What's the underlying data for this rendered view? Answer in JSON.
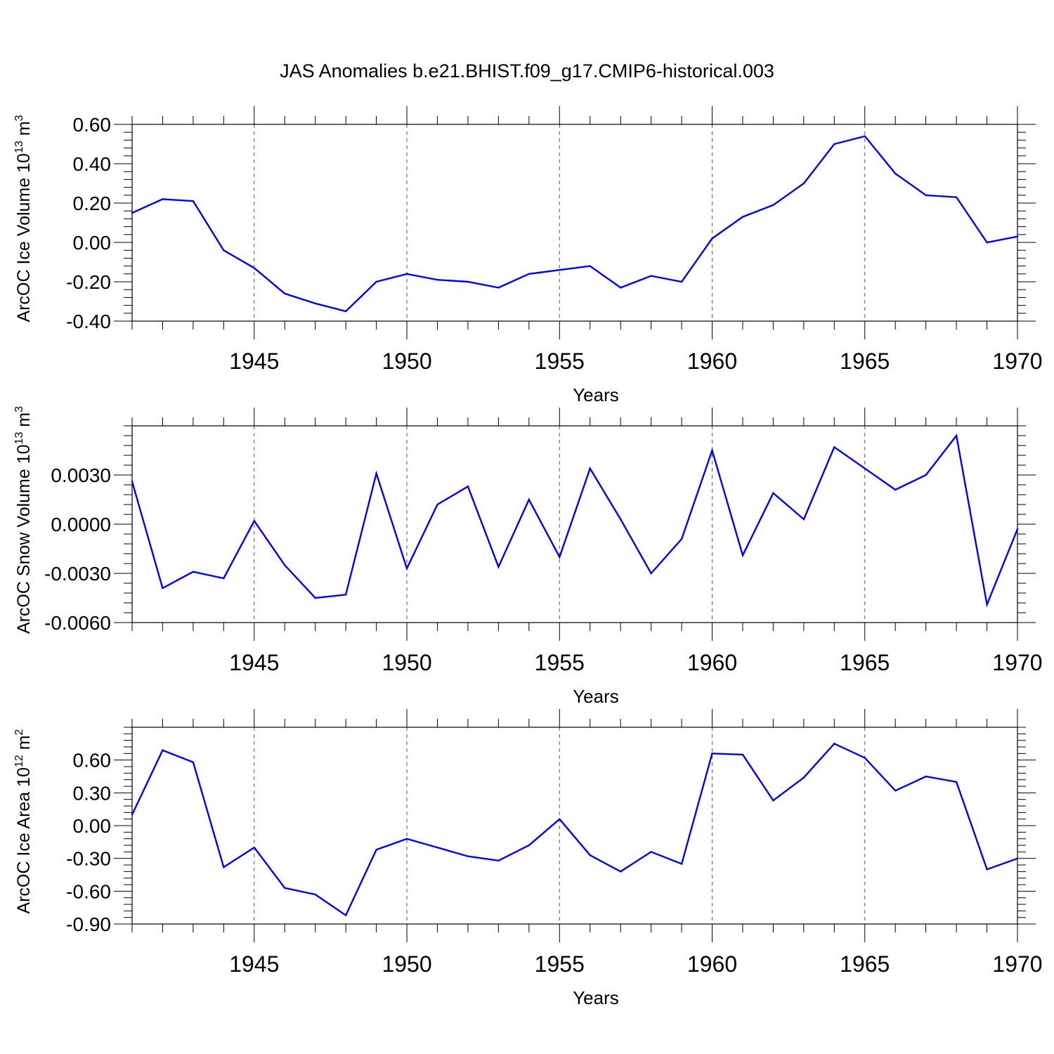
{
  "title": "JAS Anomalies b.e21.BHIST.f09_g17.CMIP6-historical.003",
  "colors": {
    "line": "#0000ff",
    "axis": "#000000",
    "grid": "#555555",
    "background": "#ffffff"
  },
  "chart_data": [
    {
      "type": "line",
      "title": "JAS Anomalies b.e21.BHIST.f09_g17.CMIP6-historical.003",
      "xlabel": "Years",
      "ylabel_parts": [
        "ArcOC Ice Volume 10",
        "13",
        " m",
        "3"
      ],
      "x": [
        1941,
        1942,
        1943,
        1944,
        1945,
        1946,
        1947,
        1948,
        1949,
        1950,
        1951,
        1952,
        1953,
        1954,
        1955,
        1956,
        1957,
        1958,
        1959,
        1960,
        1961,
        1962,
        1963,
        1964,
        1965,
        1966,
        1967,
        1968,
        1969,
        1970
      ],
      "values": [
        0.15,
        0.22,
        0.21,
        -0.04,
        -0.13,
        -0.26,
        -0.31,
        -0.35,
        -0.2,
        -0.16,
        -0.19,
        -0.2,
        -0.23,
        -0.16,
        -0.14,
        -0.12,
        -0.23,
        -0.17,
        -0.2,
        0.02,
        0.13,
        0.19,
        0.3,
        0.5,
        0.54,
        0.35,
        0.24,
        0.23,
        0.0,
        0.03
      ],
      "xlim": [
        1941,
        1970
      ],
      "ylim": [
        -0.4,
        0.6
      ],
      "xticks": [
        1945,
        1950,
        1955,
        1960,
        1965,
        1970
      ],
      "xtick_labels": [
        "1945",
        "1950",
        "1955",
        "1960",
        "1965",
        "1970"
      ],
      "yticks": [
        -0.4,
        -0.2,
        0.0,
        0.2,
        0.4,
        0.6
      ],
      "ytick_labels": [
        "-0.40",
        "-0.20",
        "0.00",
        "0.20",
        "0.40",
        "0.60"
      ],
      "grid": "vertical dashed"
    },
    {
      "type": "line",
      "xlabel": "Years",
      "ylabel_parts": [
        "ArcOC Snow Volume 10",
        "13",
        " m",
        "3"
      ],
      "x": [
        1941,
        1942,
        1943,
        1944,
        1945,
        1946,
        1947,
        1948,
        1949,
        1950,
        1951,
        1952,
        1953,
        1954,
        1955,
        1956,
        1957,
        1958,
        1959,
        1960,
        1961,
        1962,
        1963,
        1964,
        1965,
        1966,
        1967,
        1968,
        1969,
        1970
      ],
      "values": [
        0.0026,
        -0.0039,
        -0.0029,
        -0.0033,
        0.0002,
        -0.0025,
        -0.0045,
        -0.0043,
        0.0031,
        -0.0027,
        0.0012,
        0.0023,
        -0.0026,
        0.0015,
        -0.002,
        0.0034,
        0.0003,
        -0.003,
        -0.0009,
        0.0045,
        -0.0019,
        0.0019,
        0.0003,
        0.0047,
        0.0034,
        0.0021,
        0.003,
        0.0054,
        -0.0049,
        -0.0003
      ],
      "xlim": [
        1941,
        1970
      ],
      "ylim": [
        -0.006,
        0.006
      ],
      "xticks": [
        1945,
        1950,
        1955,
        1960,
        1965,
        1970
      ],
      "xtick_labels": [
        "1945",
        "1950",
        "1955",
        "1960",
        "1965",
        "1970"
      ],
      "yticks": [
        -0.006,
        -0.003,
        0.0,
        0.003
      ],
      "ytick_labels": [
        "-0.0060",
        "-0.0030",
        "0.0000",
        "0.0030"
      ],
      "grid": "vertical dashed"
    },
    {
      "type": "line",
      "xlabel": "Years",
      "ylabel_parts": [
        "ArcOC Ice Area 10",
        "12",
        " m",
        "2"
      ],
      "x": [
        1941,
        1942,
        1943,
        1944,
        1945,
        1946,
        1947,
        1948,
        1949,
        1950,
        1951,
        1952,
        1953,
        1954,
        1955,
        1956,
        1957,
        1958,
        1959,
        1960,
        1961,
        1962,
        1963,
        1964,
        1965,
        1966,
        1967,
        1968,
        1969,
        1970
      ],
      "values": [
        0.1,
        0.69,
        0.58,
        -0.38,
        -0.2,
        -0.57,
        -0.63,
        -0.82,
        -0.22,
        -0.12,
        -0.2,
        -0.28,
        -0.32,
        -0.18,
        0.06,
        -0.27,
        -0.42,
        -0.24,
        -0.35,
        0.66,
        0.65,
        0.23,
        0.44,
        0.75,
        0.62,
        0.32,
        0.45,
        0.4,
        -0.4,
        -0.3
      ],
      "xlim": [
        1941,
        1970
      ],
      "ylim": [
        -0.9,
        0.9
      ],
      "xticks": [
        1945,
        1950,
        1955,
        1960,
        1965,
        1970
      ],
      "xtick_labels": [
        "1945",
        "1950",
        "1955",
        "1960",
        "1965",
        "1970"
      ],
      "yticks": [
        -0.9,
        -0.6,
        -0.3,
        0.0,
        0.3,
        0.6
      ],
      "ytick_labels": [
        "-0.90",
        "-0.60",
        "-0.30",
        "0.00",
        "0.30",
        "0.60"
      ],
      "grid": "vertical dashed"
    }
  ]
}
